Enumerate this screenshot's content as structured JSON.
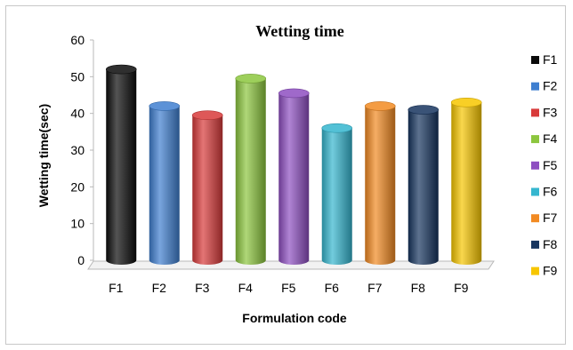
{
  "chart_data": {
    "type": "bar",
    "title": "Wetting time",
    "xlabel": "Formulation code",
    "ylabel": "Wetting time(sec)",
    "ylim": [
      0,
      60
    ],
    "yticks": [
      0,
      10,
      20,
      30,
      40,
      50,
      60
    ],
    "categories": [
      "F1",
      "F2",
      "F3",
      "F4",
      "F5",
      "F6",
      "F7",
      "F8",
      "F9"
    ],
    "values": [
      52,
      42,
      39.5,
      49.5,
      45.5,
      36,
      42,
      41,
      43
    ],
    "colors": [
      "#0a0a0a",
      "#3f7fd0",
      "#d83a3a",
      "#8cc63e",
      "#8e4fc1",
      "#35b6cf",
      "#f28a22",
      "#17355f",
      "#f7c600"
    ],
    "legend": [
      "F1",
      "F2",
      "F3",
      "F4",
      "F5",
      "F6",
      "F7",
      "F8",
      "F9"
    ],
    "legend_position": "right",
    "grid": false,
    "style": "3d-cylinder"
  }
}
